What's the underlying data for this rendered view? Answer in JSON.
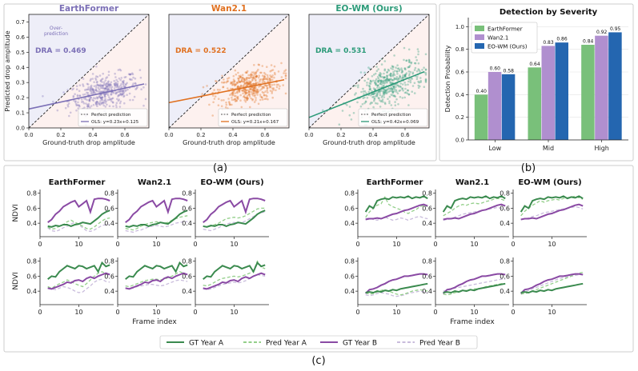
{
  "figure": {
    "label_a": "(a)",
    "label_b": "(b)",
    "label_c": "(c)"
  },
  "colors": {
    "earthformer": "#7b6fb6",
    "wan": "#e0701f",
    "eowm": "#2b9a78",
    "bar_earthformer": "#79c07a",
    "bar_wan": "#b08fcf",
    "bar_eowm": "#2466b0",
    "gt_a": "#3a8a4e",
    "pred_a": "#93cf8a",
    "gt_b": "#8a4aa4",
    "pred_b": "#c9bcdc"
  },
  "chart_data": [
    {
      "type": "scatter",
      "title": "EarthFormer",
      "xlabel": "Ground-truth drop amplitude",
      "ylabel": "Predicted drop amplitude",
      "xlim": [
        0,
        0.75
      ],
      "ylim": [
        0,
        0.75
      ],
      "xticks": [
        "0.0",
        "0.2",
        "0.4",
        "0.6"
      ],
      "yticks": [
        "0.0",
        "0.1",
        "0.2",
        "0.3",
        "0.4",
        "0.5",
        "0.6",
        "0.7"
      ],
      "dra_text": "DRA = 0.469",
      "over_label": [
        "Over-",
        "prediction"
      ],
      "legend": [
        "Perfect prediction",
        "OLS: y=0.23x+0.125"
      ],
      "ols": {
        "slope": 0.23,
        "intercept": 0.125
      },
      "color": "#7b6fb6",
      "cloud": {
        "xc": 0.47,
        "xs": 0.11,
        "yc": 0.24,
        "ys": 0.07,
        "n": 420
      }
    },
    {
      "type": "scatter",
      "title": "Wan2.1",
      "xlim": [
        0,
        0.75
      ],
      "ylim": [
        0,
        0.75
      ],
      "xticks": [
        "0.0",
        "0.2",
        "0.4",
        "0.6"
      ],
      "xlabel": "Ground-truth drop amplitude",
      "dra_text": "DRA = 0.522",
      "legend": [
        "Perfect prediction",
        "OLS: y=0.21x+0.167"
      ],
      "ols": {
        "slope": 0.21,
        "intercept": 0.167
      },
      "color": "#e0701f",
      "cloud": {
        "xc": 0.5,
        "xs": 0.1,
        "yc": 0.27,
        "ys": 0.07,
        "n": 460
      }
    },
    {
      "type": "scatter",
      "title": "EO-WM (Ours)",
      "xlim": [
        0,
        0.75
      ],
      "ylim": [
        0,
        0.75
      ],
      "xticks": [
        "0.0",
        "0.2",
        "0.4",
        "0.6"
      ],
      "xlabel": "Ground-truth drop amplitude",
      "dra_text": "DRA = 0.531",
      "legend": [
        "Perfect prediction",
        "OLS: y=0.42x+0.069"
      ],
      "ols": {
        "slope": 0.42,
        "intercept": 0.069
      },
      "color": "#2b9a78",
      "cloud": {
        "xc": 0.5,
        "xs": 0.11,
        "yc": 0.28,
        "ys": 0.09,
        "n": 460
      }
    },
    {
      "type": "bar",
      "title": "Detection by Severity",
      "ylabel": "Detection Probability",
      "categories": [
        "Low",
        "Mid",
        "High"
      ],
      "ylim": [
        0,
        1.08
      ],
      "yticks": [
        "0.0",
        "0.2",
        "0.4",
        "0.6",
        "0.8",
        "1.0"
      ],
      "series": [
        {
          "name": "EarthFormer",
          "values": [
            0.4,
            0.64,
            0.84
          ],
          "labels": [
            "0.40",
            "0.64",
            "0.84"
          ]
        },
        {
          "name": "Wan2.1",
          "values": [
            0.6,
            0.83,
            0.92
          ],
          "labels": [
            "0.60",
            "0.83",
            "0.92"
          ]
        },
        {
          "name": "EO-WM (Ours)",
          "values": [
            0.58,
            0.86,
            0.95
          ],
          "labels": [
            "0.58",
            "0.86",
            "0.95"
          ]
        }
      ]
    },
    {
      "type": "line",
      "xlabel": "Frame index",
      "ylabel": "NDVI",
      "xlim": [
        0,
        19
      ],
      "ylim": [
        0.22,
        0.85
      ],
      "xticks": [
        "0",
        "10"
      ],
      "yticks": [
        "0.4",
        "0.6",
        "0.8"
      ],
      "column_titles": [
        "EarthFormer",
        "Wan2.1",
        "EO-WM (Ours)"
      ],
      "legend": [
        "GT Year A",
        "Pred Year A",
        "GT Year B",
        "Pred Year B"
      ],
      "x": [
        2,
        3,
        4,
        5,
        6,
        7,
        8,
        9,
        10,
        11,
        12,
        13,
        14,
        15,
        16,
        17,
        18
      ],
      "groups": [
        {
          "gt_a": [
            0.36,
            0.35,
            0.37,
            0.36,
            0.38,
            0.38,
            0.36,
            0.38,
            0.39,
            0.41,
            0.4,
            0.39,
            0.43,
            0.47,
            0.52,
            0.55,
            0.57
          ],
          "gt_b": [
            0.41,
            0.45,
            0.52,
            0.56,
            0.62,
            0.65,
            0.68,
            0.7,
            0.62,
            0.66,
            0.7,
            0.55,
            0.72,
            0.73,
            0.73,
            0.72,
            0.7
          ],
          "pred": [
            {
              "a": [
                0.35,
                0.32,
                0.33,
                0.36,
                0.38,
                0.42,
                0.44,
                0.41,
                0.39,
                0.36,
                0.33,
                0.32,
                0.35,
                0.39,
                0.43,
                0.46,
                0.47
              ],
              "b": [
                0.34,
                0.3,
                0.29,
                0.31,
                0.34,
                0.36,
                0.39,
                0.41,
                0.38,
                0.34,
                0.3,
                0.29,
                0.31,
                0.34,
                0.37,
                0.38,
                0.38
              ]
            },
            {
              "a": [
                0.33,
                0.32,
                0.31,
                0.33,
                0.36,
                0.38,
                0.4,
                0.41,
                0.42,
                0.41,
                0.4,
                0.41,
                0.44,
                0.46,
                0.48,
                0.49,
                0.5
              ],
              "b": [
                0.3,
                0.29,
                0.28,
                0.3,
                0.31,
                0.33,
                0.35,
                0.36,
                0.37,
                0.36,
                0.35,
                0.36,
                0.38,
                0.4,
                0.41,
                0.42,
                0.42
              ]
            },
            {
              "a": [
                0.36,
                0.35,
                0.36,
                0.38,
                0.4,
                0.43,
                0.46,
                0.47,
                0.48,
                0.47,
                0.48,
                0.5,
                0.53,
                0.56,
                0.59,
                0.6,
                0.6
              ],
              "b": [
                0.32,
                0.31,
                0.3,
                0.32,
                0.34,
                0.37,
                0.39,
                0.4,
                0.41,
                0.4,
                0.41,
                0.43,
                0.46,
                0.49,
                0.52,
                0.54,
                0.55
              ]
            }
          ]
        },
        {
          "gt_a": [
            0.56,
            0.6,
            0.59,
            0.66,
            0.7,
            0.74,
            0.72,
            0.7,
            0.74,
            0.73,
            0.7,
            0.72,
            0.74,
            0.66,
            0.78,
            0.73,
            0.75
          ],
          "gt_b": [
            0.44,
            0.43,
            0.45,
            0.47,
            0.49,
            0.52,
            0.51,
            0.54,
            0.55,
            0.53,
            0.57,
            0.59,
            0.57,
            0.6,
            0.62,
            0.64,
            0.62
          ],
          "pred": [
            {
              "a": [
                0.46,
                0.44,
                0.47,
                0.5,
                0.52,
                0.55,
                0.53,
                0.5,
                0.48,
                0.46,
                0.5,
                0.55,
                0.6,
                0.64,
                0.66,
                0.63,
                0.62
              ],
              "b": [
                0.44,
                0.43,
                0.42,
                0.44,
                0.46,
                0.45,
                0.43,
                0.4,
                0.38,
                0.39,
                0.43,
                0.47,
                0.52,
                0.55,
                0.56,
                0.53,
                0.52
              ]
            },
            {
              "a": [
                0.47,
                0.46,
                0.48,
                0.5,
                0.52,
                0.54,
                0.55,
                0.56,
                0.56,
                0.55,
                0.56,
                0.58,
                0.6,
                0.63,
                0.66,
                0.64,
                0.62
              ],
              "b": [
                0.44,
                0.43,
                0.44,
                0.46,
                0.47,
                0.48,
                0.49,
                0.49,
                0.48,
                0.47,
                0.48,
                0.5,
                0.52,
                0.54,
                0.55,
                0.54,
                0.53
              ]
            },
            {
              "a": [
                0.48,
                0.47,
                0.49,
                0.52,
                0.55,
                0.57,
                0.58,
                0.59,
                0.6,
                0.59,
                0.6,
                0.62,
                0.64,
                0.67,
                0.8,
                0.72,
                0.7
              ],
              "b": [
                0.43,
                0.42,
                0.43,
                0.45,
                0.47,
                0.49,
                0.5,
                0.51,
                0.52,
                0.51,
                0.52,
                0.54,
                0.57,
                0.6,
                0.62,
                0.61,
                0.6
              ]
            }
          ]
        },
        {
          "gt_a": [
            0.55,
            0.63,
            0.6,
            0.7,
            0.72,
            0.73,
            0.72,
            0.75,
            0.74,
            0.75,
            0.74,
            0.76,
            0.73,
            0.75,
            0.74,
            0.76,
            0.73
          ],
          "gt_b": [
            0.45,
            0.46,
            0.46,
            0.47,
            0.46,
            0.48,
            0.5,
            0.52,
            0.53,
            0.55,
            0.57,
            0.58,
            0.6,
            0.62,
            0.64,
            0.65,
            0.63
          ],
          "pred": [
            {
              "a": [
                0.48,
                0.55,
                0.6,
                0.64,
                0.66,
                0.75,
                0.65,
                0.62,
                0.6,
                0.58,
                0.55,
                0.53,
                0.56,
                0.58,
                0.62,
                0.64,
                0.62
              ],
              "b": [
                0.46,
                0.47,
                0.45,
                0.44,
                0.46,
                0.48,
                0.46,
                0.44,
                0.45,
                0.47,
                0.46,
                0.44,
                0.46,
                0.48,
                0.49,
                0.47,
                0.46
              ]
            },
            {
              "a": [
                0.5,
                0.53,
                0.56,
                0.6,
                0.63,
                0.65,
                0.64,
                0.66,
                0.67,
                0.66,
                0.67,
                0.69,
                0.7,
                0.72,
                0.73,
                0.72,
                0.7
              ],
              "b": [
                0.44,
                0.45,
                0.46,
                0.48,
                0.5,
                0.52,
                0.53,
                0.54,
                0.55,
                0.56,
                0.57,
                0.58,
                0.59,
                0.6,
                0.61,
                0.6,
                0.58
              ]
            },
            {
              "a": [
                0.5,
                0.56,
                0.6,
                0.64,
                0.67,
                0.7,
                0.68,
                0.7,
                0.71,
                0.72,
                0.71,
                0.73,
                0.74,
                0.75,
                0.76,
                0.74,
                0.72
              ],
              "b": [
                0.45,
                0.46,
                0.47,
                0.49,
                0.5,
                0.52,
                0.54,
                0.55,
                0.56,
                0.57,
                0.58,
                0.59,
                0.6,
                0.61,
                0.62,
                0.61,
                0.59
              ]
            }
          ]
        },
        {
          "gt_a": [
            0.38,
            0.39,
            0.38,
            0.4,
            0.39,
            0.41,
            0.4,
            0.42,
            0.41,
            0.43,
            0.44,
            0.45,
            0.46,
            0.47,
            0.48,
            0.49,
            0.5
          ],
          "gt_b": [
            0.37,
            0.42,
            0.43,
            0.45,
            0.48,
            0.5,
            0.53,
            0.55,
            0.56,
            0.58,
            0.6,
            0.6,
            0.61,
            0.62,
            0.63,
            0.63,
            0.62
          ],
          "pred": [
            {
              "a": [
                0.38,
                0.36,
                0.37,
                0.39,
                0.41,
                0.42,
                0.4,
                0.38,
                0.36,
                0.35,
                0.36,
                0.38,
                0.4,
                0.41,
                0.42,
                0.41,
                0.4
              ],
              "b": [
                0.35,
                0.34,
                0.35,
                0.37,
                0.38,
                0.37,
                0.36,
                0.34,
                0.33,
                0.34,
                0.35,
                0.37,
                0.38,
                0.39,
                0.4,
                0.39,
                0.38
              ]
            },
            {
              "a": [
                0.36,
                0.35,
                0.36,
                0.38,
                0.39,
                0.4,
                0.41,
                0.42,
                0.43,
                0.43,
                0.44,
                0.46,
                0.47,
                0.48,
                0.49,
                0.5,
                0.5
              ],
              "b": [
                0.4,
                0.41,
                0.42,
                0.44,
                0.45,
                0.46,
                0.47,
                0.48,
                0.49,
                0.5,
                0.51,
                0.52,
                0.53,
                0.54,
                0.55,
                0.56,
                0.56
              ]
            },
            {
              "a": [
                0.36,
                0.37,
                0.38,
                0.4,
                0.42,
                0.44,
                0.46,
                0.48,
                0.5,
                0.52,
                0.54,
                0.56,
                0.58,
                0.6,
                0.62,
                0.64,
                0.65
              ],
              "b": [
                0.38,
                0.39,
                0.41,
                0.43,
                0.45,
                0.47,
                0.49,
                0.51,
                0.53,
                0.55,
                0.57,
                0.58,
                0.59,
                0.6,
                0.61,
                0.62,
                0.62
              ]
            }
          ]
        }
      ]
    }
  ]
}
